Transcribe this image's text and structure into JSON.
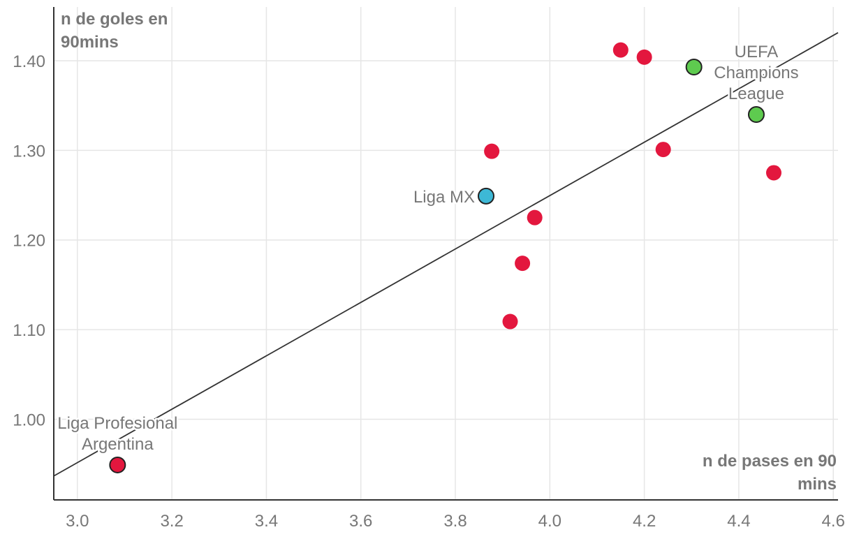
{
  "chart_data": {
    "type": "scatter",
    "xlabel_lines": [
      "n de pases en 90",
      "mins"
    ],
    "ylabel_lines": [
      "n de goles en",
      "90mins"
    ],
    "xlim": [
      2.95,
      4.61
    ],
    "ylim": [
      0.91,
      1.46
    ],
    "xticks": [
      3.0,
      3.2,
      3.4,
      3.6,
      3.8,
      4.0,
      4.2,
      4.4,
      4.6
    ],
    "xtick_labels": [
      "3.0",
      "3.2",
      "3.4",
      "3.6",
      "3.8",
      "4.0",
      "4.2",
      "4.4",
      "4.6"
    ],
    "yticks": [
      1.0,
      1.1,
      1.2,
      1.3,
      1.4
    ],
    "ytick_labels": [
      "1.00",
      "1.10",
      "1.20",
      "1.30",
      "1.40"
    ],
    "grid": true,
    "colors": {
      "default": "#e3173e",
      "highlight_green": "#5ecb4f",
      "highlight_blue": "#3db8d6",
      "trend": "#333333",
      "grid": "#e6e6e6"
    },
    "points": [
      {
        "x": 3.085,
        "y": 0.949,
        "color": "#e3173e",
        "outlined": true,
        "label_lines": [
          "Liga Profesional",
          "Argentina"
        ],
        "label_anchor": "above"
      },
      {
        "x": 3.865,
        "y": 1.249,
        "color": "#3db8d6",
        "outlined": true,
        "label_lines": [
          "Liga MX"
        ],
        "label_anchor": "left"
      },
      {
        "x": 4.305,
        "y": 1.393,
        "color": "#5ecb4f",
        "outlined": true,
        "label_lines": [],
        "label_anchor": ""
      },
      {
        "x": 4.437,
        "y": 1.34,
        "color": "#5ecb4f",
        "outlined": true,
        "label_lines": [
          "UEFA",
          "Champions",
          "League"
        ],
        "label_anchor": "above"
      },
      {
        "x": 3.877,
        "y": 1.299,
        "color": "#e3173e",
        "outlined": false,
        "label_lines": [],
        "label_anchor": ""
      },
      {
        "x": 3.968,
        "y": 1.225,
        "color": "#e3173e",
        "outlined": false,
        "label_lines": [],
        "label_anchor": ""
      },
      {
        "x": 3.942,
        "y": 1.174,
        "color": "#e3173e",
        "outlined": false,
        "label_lines": [],
        "label_anchor": ""
      },
      {
        "x": 3.916,
        "y": 1.109,
        "color": "#e3173e",
        "outlined": false,
        "label_lines": [],
        "label_anchor": ""
      },
      {
        "x": 4.15,
        "y": 1.412,
        "color": "#e3173e",
        "outlined": false,
        "label_lines": [],
        "label_anchor": ""
      },
      {
        "x": 4.2,
        "y": 1.404,
        "color": "#e3173e",
        "outlined": false,
        "label_lines": [],
        "label_anchor": ""
      },
      {
        "x": 4.24,
        "y": 1.301,
        "color": "#e3173e",
        "outlined": false,
        "label_lines": [],
        "label_anchor": ""
      },
      {
        "x": 4.474,
        "y": 1.275,
        "color": "#e3173e",
        "outlined": false,
        "label_lines": [],
        "label_anchor": ""
      }
    ],
    "trendline": {
      "x": [
        2.95,
        4.61
      ],
      "y": [
        0.9367,
        1.4313
      ]
    }
  }
}
